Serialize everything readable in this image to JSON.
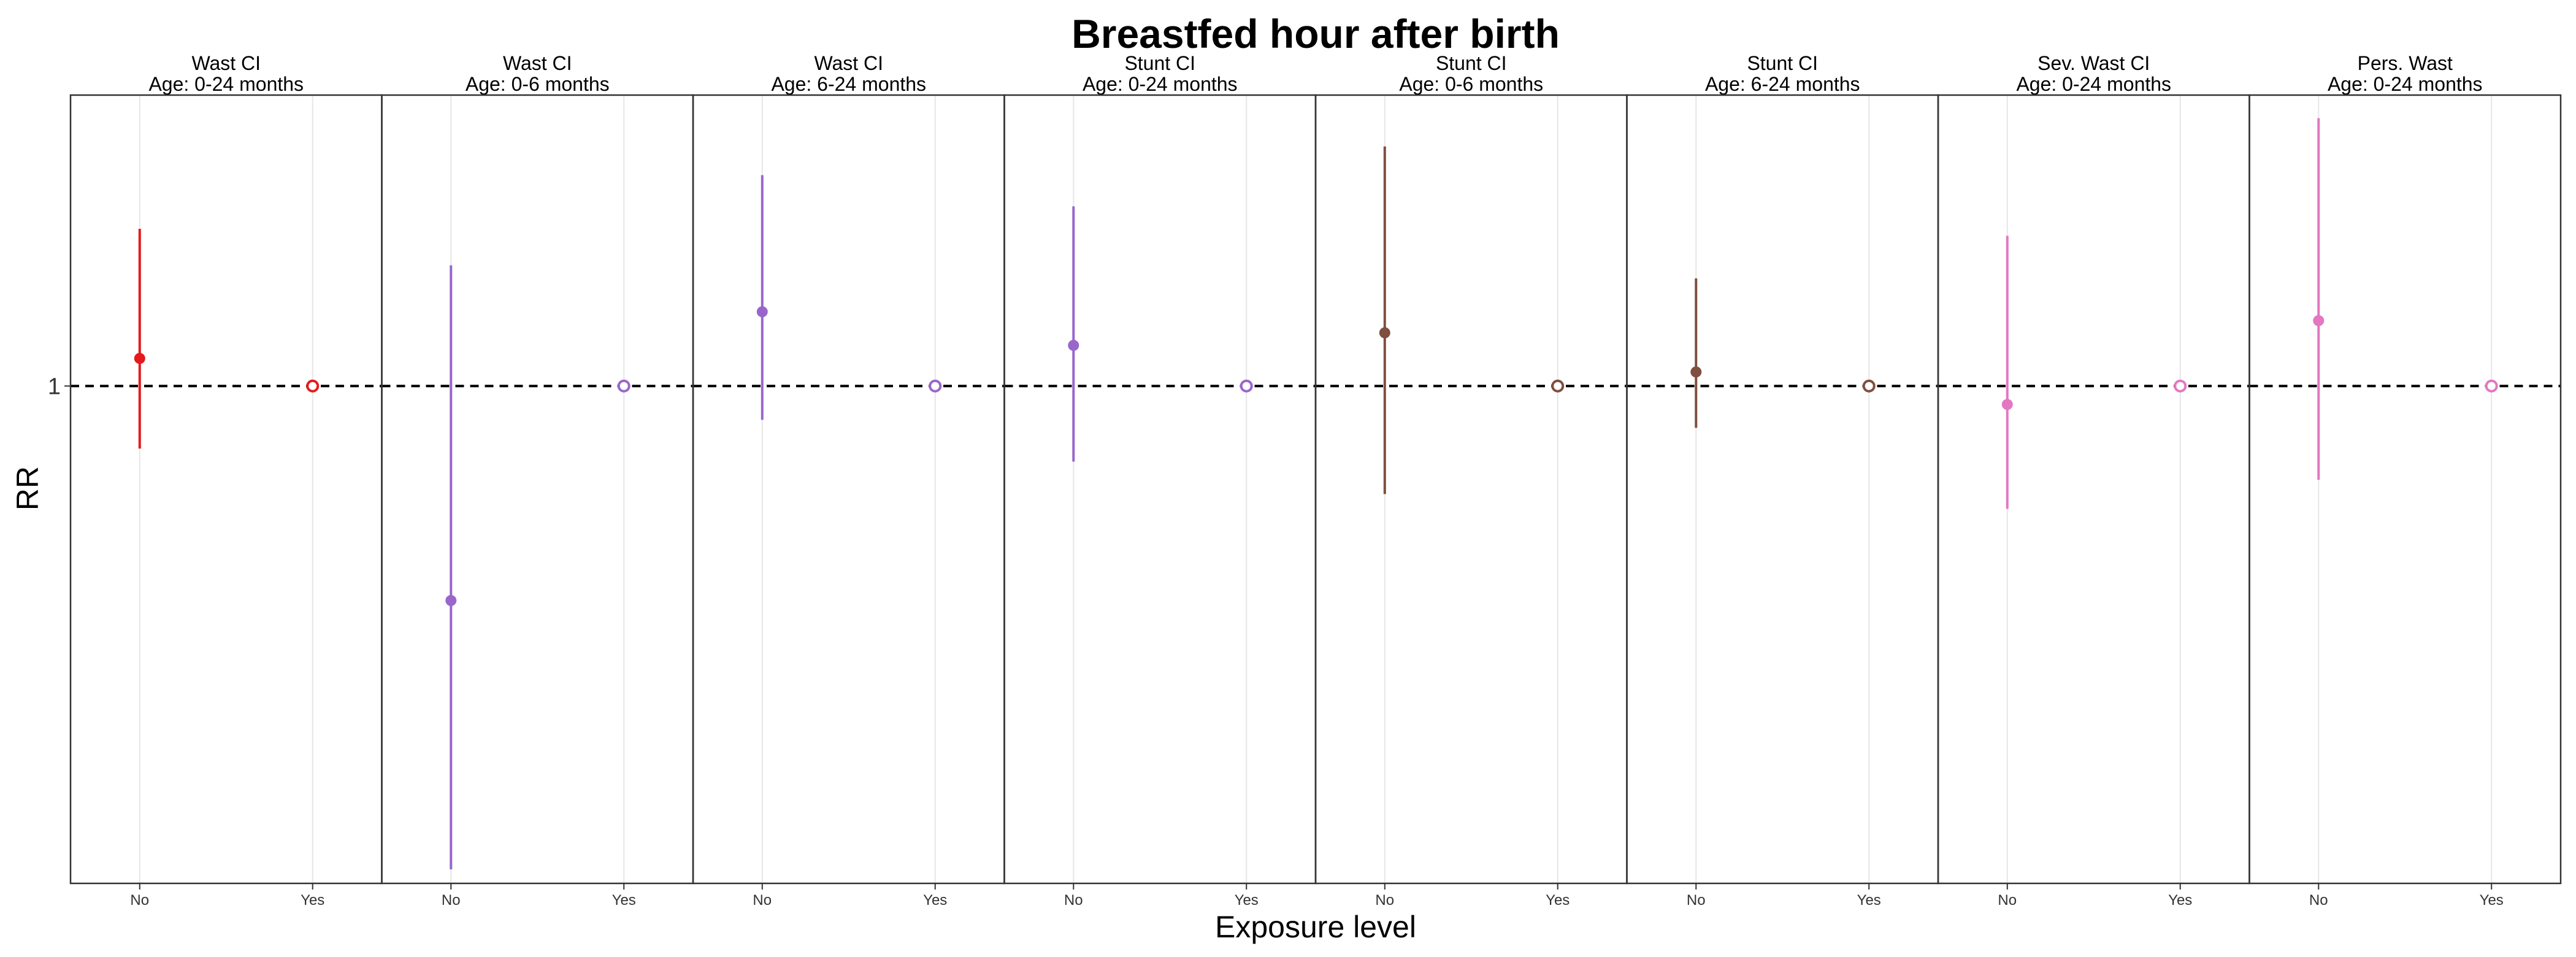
{
  "chart_data": {
    "type": "scatter",
    "title": "Breastfed hour after birth",
    "xlabel": "Exposure level",
    "ylabel": "RR",
    "categories": [
      "No",
      "Yes"
    ],
    "y_scale": "log",
    "y_ticks": [
      1
    ],
    "y_tick_labels": [
      "1"
    ],
    "ylim": [
      0.25,
      2.25
    ],
    "reference_line": 1,
    "grid": true,
    "legend": "none",
    "facets": [
      {
        "strip_line1": "Wast CI",
        "strip_line2": "Age: 0-24 months",
        "color": "#E41A1C",
        "no": {
          "rr": 1.08,
          "lower": 0.84,
          "upper": 1.55
        },
        "yes": {
          "rr": 1.0,
          "reference": true
        }
      },
      {
        "strip_line1": "Wast CI",
        "strip_line2": "Age: 0-6 months",
        "color": "#9966CC",
        "no": {
          "rr": 0.55,
          "lower": 0.26,
          "upper": 1.4
        },
        "yes": {
          "rr": 1.0,
          "reference": true
        }
      },
      {
        "strip_line1": "Wast CI",
        "strip_line2": "Age: 6-24 months",
        "color": "#9966CC",
        "no": {
          "rr": 1.23,
          "lower": 0.91,
          "upper": 1.8
        },
        "yes": {
          "rr": 1.0,
          "reference": true
        }
      },
      {
        "strip_line1": "Stunt CI",
        "strip_line2": "Age: 0-24 months",
        "color": "#9966CC",
        "no": {
          "rr": 1.12,
          "lower": 0.81,
          "upper": 1.65
        },
        "yes": {
          "rr": 1.0,
          "reference": true
        }
      },
      {
        "strip_line1": "Stunt CI",
        "strip_line2": "Age: 0-6 months",
        "color": "#7F4F3F",
        "no": {
          "rr": 1.16,
          "lower": 0.74,
          "upper": 1.95
        },
        "yes": {
          "rr": 1.0,
          "reference": true
        }
      },
      {
        "strip_line1": "Stunt CI",
        "strip_line2": "Age: 6-24 months",
        "color": "#7F4F3F",
        "no": {
          "rr": 1.04,
          "lower": 0.89,
          "upper": 1.35
        },
        "yes": {
          "rr": 1.0,
          "reference": true
        }
      },
      {
        "strip_line1": "Sev. Wast CI",
        "strip_line2": "Age: 0-24 months",
        "color": "#E377C2",
        "no": {
          "rr": 0.95,
          "lower": 0.71,
          "upper": 1.52
        },
        "yes": {
          "rr": 1.0,
          "reference": true
        }
      },
      {
        "strip_line1": "Pers. Wast",
        "strip_line2": "Age: 0-24 months",
        "color": "#E377C2",
        "no": {
          "rr": 1.2,
          "lower": 0.77,
          "upper": 2.11
        },
        "yes": {
          "rr": 1.0,
          "reference": true
        }
      }
    ]
  }
}
